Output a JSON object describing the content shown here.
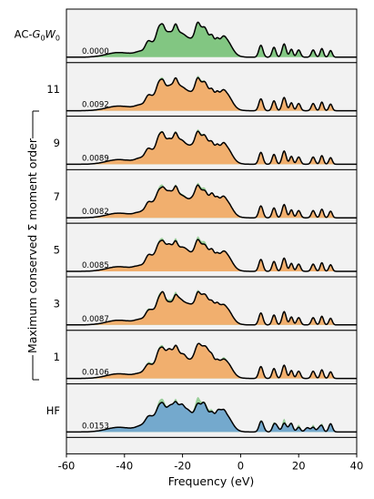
{
  "chart_data": {
    "type": "area",
    "xlabel": "Frequency (eV)",
    "ylabel": "Maximum conserved Σ moment order",
    "xlim": [
      -60,
      40
    ],
    "xticks": [
      -60,
      -40,
      -20,
      0,
      20,
      40
    ],
    "xtick_labels": [
      "-60",
      "-40",
      "-20",
      "0",
      "20",
      "40"
    ],
    "colors": {
      "reference": "#7bc37b",
      "moment": "#f5ad6b",
      "hf": "#72a7d0",
      "background": "#f2f2f2"
    },
    "panels": [
      {
        "label_main": "AC-",
        "label_g": "G",
        "label_g_sub": "0",
        "label_w": "W",
        "label_w_sub": "0",
        "label": "AC-G0W0",
        "error_label": "0.0000",
        "error": 0.0,
        "color": "#7bc37b",
        "show_reference": false
      },
      {
        "label": "11",
        "error_label": "0.0092",
        "error": 0.0092,
        "color": "#f5ad6b",
        "show_reference": true
      },
      {
        "label": "9",
        "error_label": "0.0089",
        "error": 0.0089,
        "color": "#f5ad6b",
        "show_reference": true
      },
      {
        "label": "7",
        "error_label": "0.0082",
        "error": 0.0082,
        "color": "#f5ad6b",
        "show_reference": true
      },
      {
        "label": "5",
        "error_label": "0.0085",
        "error": 0.0085,
        "color": "#f5ad6b",
        "show_reference": true
      },
      {
        "label": "3",
        "error_label": "0.0087",
        "error": 0.0087,
        "color": "#f5ad6b",
        "show_reference": true
      },
      {
        "label": "1",
        "error_label": "0.0106",
        "error": 0.0106,
        "color": "#f5ad6b",
        "show_reference": true
      },
      {
        "label": "HF",
        "error_label": "0.0153",
        "error": 0.0153,
        "color": "#72a7d0",
        "show_reference": true
      }
    ]
  }
}
